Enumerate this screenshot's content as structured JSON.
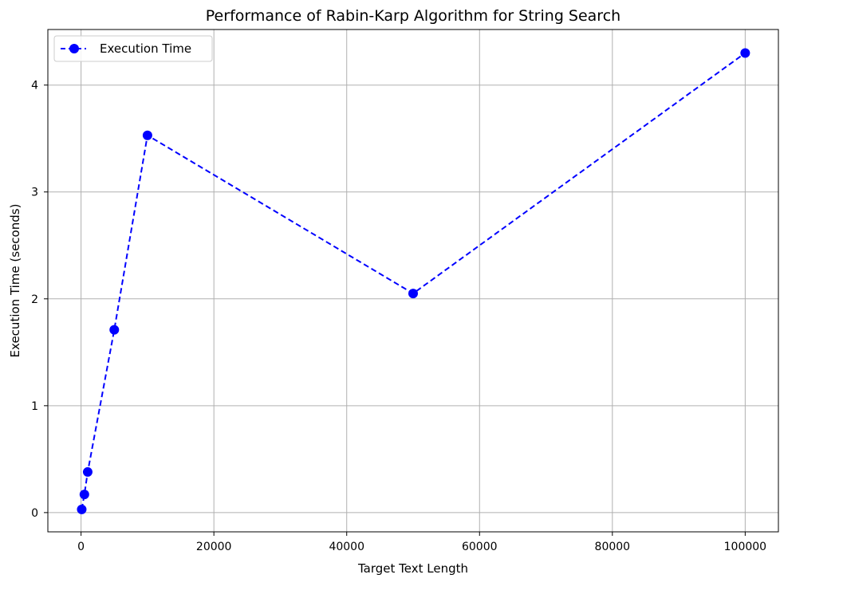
{
  "chart_data": {
    "type": "line",
    "title": "Performance of Rabin-Karp Algorithm for String Search",
    "xlabel": "Target Text Length",
    "ylabel": "Execution Time (seconds)",
    "xlim": [
      -5000,
      105000
    ],
    "ylim": [
      -0.18,
      4.52
    ],
    "xticks": [
      0,
      20000,
      40000,
      60000,
      80000,
      100000
    ],
    "xtick_labels": [
      "0",
      "20000",
      "40000",
      "60000",
      "80000",
      "100000"
    ],
    "yticks": [
      0,
      1,
      2,
      3,
      4
    ],
    "ytick_labels": [
      "0",
      "1",
      "2",
      "3",
      "4"
    ],
    "grid": true,
    "legend_position": "upper-left",
    "series": [
      {
        "name": "Execution Time",
        "color": "#0000ff",
        "line_style": "dashed",
        "marker": "circle",
        "x": [
          100,
          500,
          1000,
          5000,
          10000,
          50000,
          100000
        ],
        "y": [
          0.03,
          0.17,
          0.38,
          1.71,
          3.53,
          2.05,
          4.3
        ]
      }
    ]
  }
}
